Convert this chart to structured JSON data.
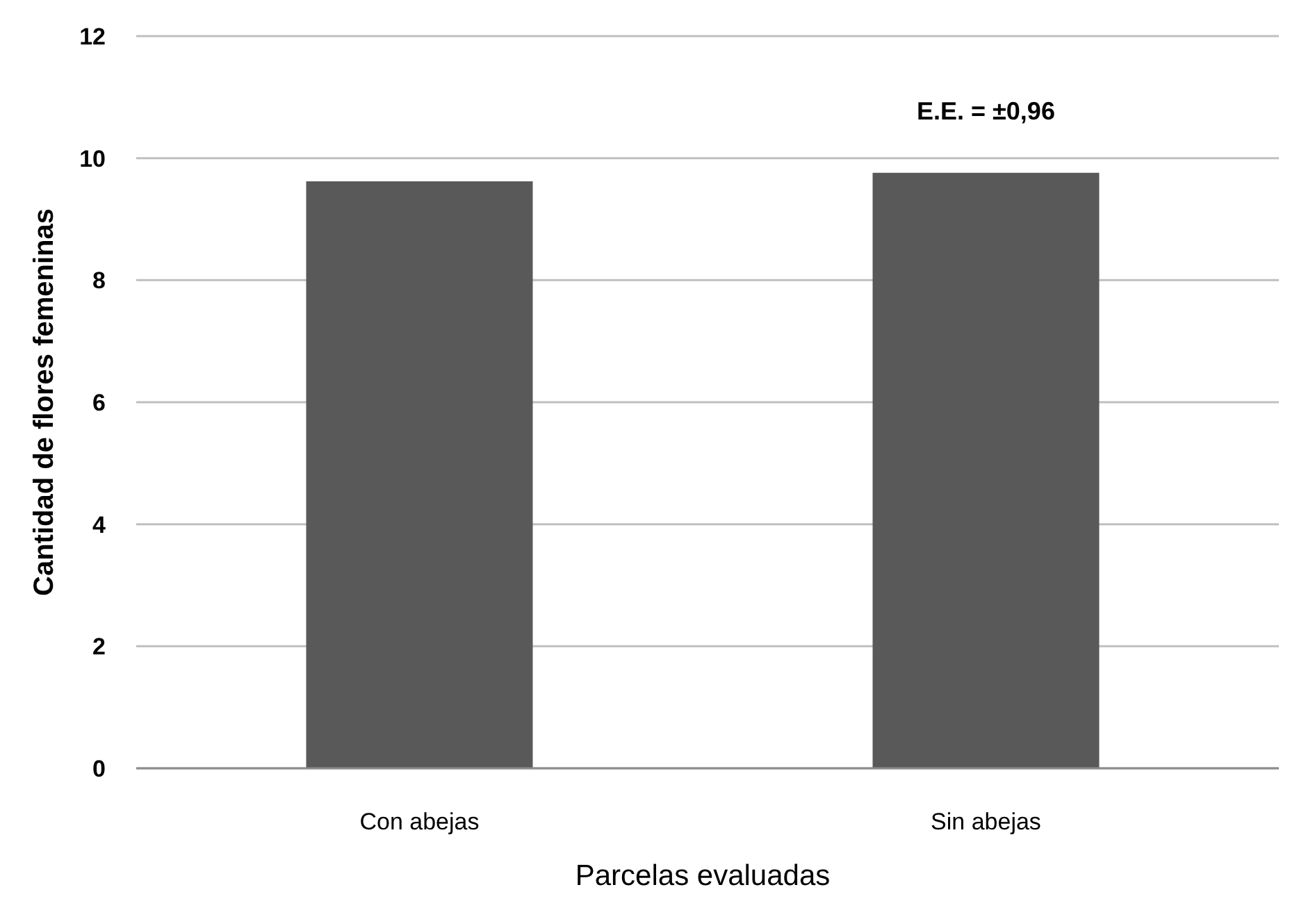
{
  "chart_data": {
    "type": "bar",
    "xlabel": "Parcelas evaluadas",
    "ylabel": "Cantidad de flores femeninas",
    "categories": [
      "Con abejas",
      "Sin abejas"
    ],
    "values": [
      9.62,
      9.76
    ],
    "color": "#595959",
    "ylim": [
      0,
      12
    ],
    "yticks": [
      0,
      2,
      4,
      6,
      8,
      10,
      12
    ],
    "grid": "y",
    "annotations": [
      "E.E. = ±0,96"
    ]
  }
}
